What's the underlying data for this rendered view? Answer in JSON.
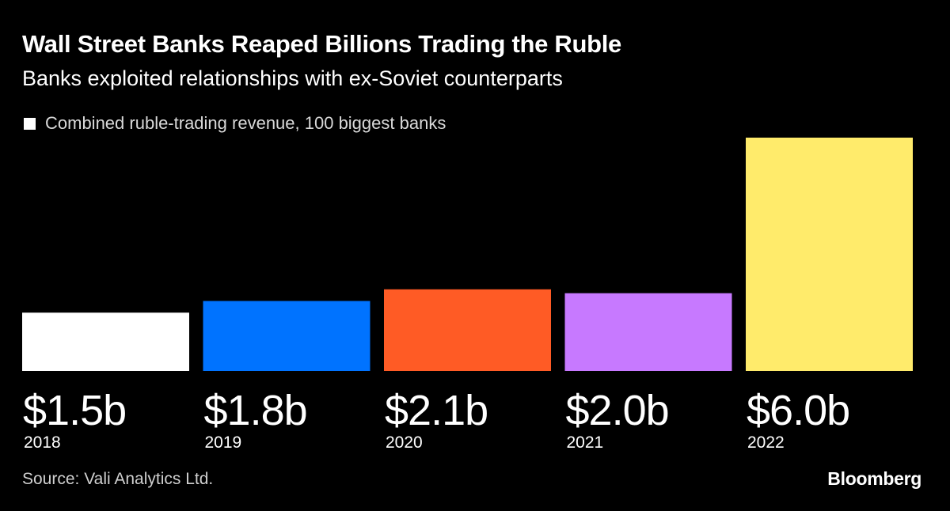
{
  "title": "Wall Street Banks Reaped Billions Trading the Ruble",
  "subtitle": "Banks exploited relationships with ex-Soviet counterparts",
  "source": "Source: Vali Analytics Ltd.",
  "brand": "Bloomberg",
  "chart_data": {
    "type": "bar",
    "categories": [
      "2018",
      "2019",
      "2020",
      "2021",
      "2022"
    ],
    "series": [
      {
        "name": "Combined ruble-trading revenue, 100 biggest banks",
        "values": [
          1.5,
          1.8,
          2.1,
          2.0,
          6.0
        ],
        "value_labels": [
          "$1.5b",
          "$1.8b",
          "$2.1b",
          "$2.0b",
          "$6.0b"
        ],
        "unit": "billion USD"
      }
    ],
    "bar_colors": [
      "#ffffff",
      "#0073ff",
      "#ff5b25",
      "#c779ff",
      "#ffeb6b"
    ],
    "legend": {
      "label": "Combined ruble-trading revenue, 100 biggest banks",
      "color": "#ffffff",
      "position": "top-left"
    },
    "ylim": [
      0,
      6.0
    ],
    "grid": false,
    "axes_visible": false,
    "xlabel": "",
    "ylabel": ""
  }
}
